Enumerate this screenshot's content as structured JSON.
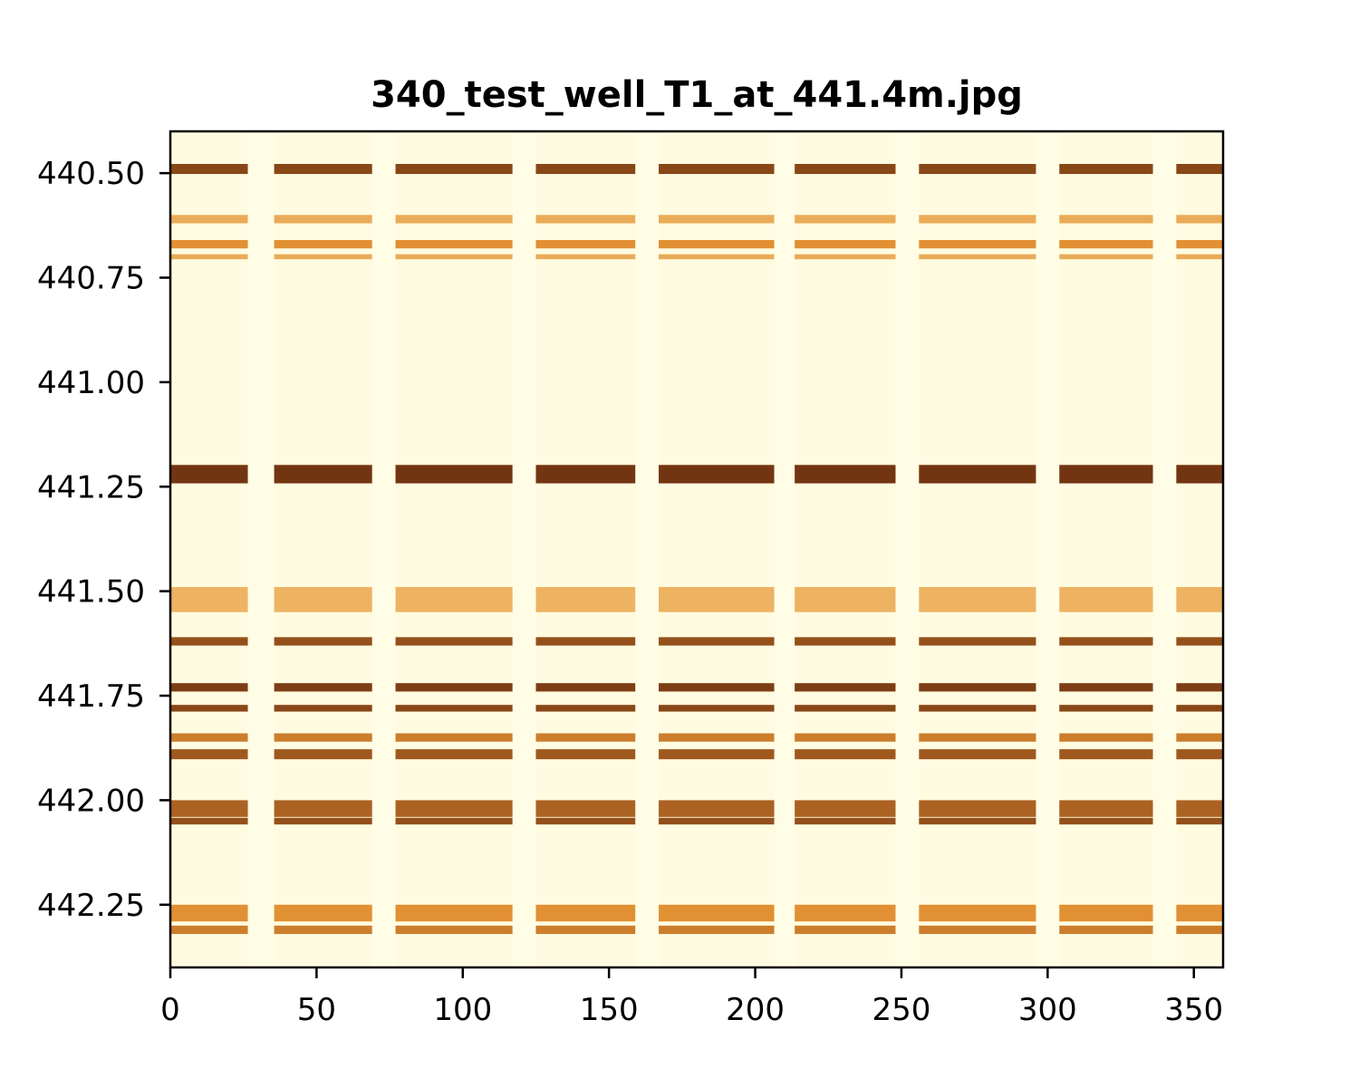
{
  "chart_data": {
    "type": "heatmap",
    "title": "340_test_well_T1_at_441.4m.jpg",
    "xlabel": "",
    "ylabel": "",
    "xlim": [
      0,
      360
    ],
    "ylim": [
      442.4,
      440.4
    ],
    "y_inverted": true,
    "grid": false,
    "colormap": "YlOrBr",
    "x_ticks": [
      {
        "value": 0,
        "label": "0"
      },
      {
        "value": 50,
        "label": "50"
      },
      {
        "value": 100,
        "label": "100"
      },
      {
        "value": 150,
        "label": "150"
      },
      {
        "value": 200,
        "label": "200"
      },
      {
        "value": 250,
        "label": "250"
      },
      {
        "value": 300,
        "label": "300"
      },
      {
        "value": 350,
        "label": "350"
      }
    ],
    "y_ticks": [
      {
        "value": 440.5,
        "label": "440.50"
      },
      {
        "value": 440.75,
        "label": "440.75"
      },
      {
        "value": 441.0,
        "label": "441.00"
      },
      {
        "value": 441.25,
        "label": "441.25"
      },
      {
        "value": 441.5,
        "label": "441.50"
      },
      {
        "value": 441.75,
        "label": "441.75"
      },
      {
        "value": 442.0,
        "label": "442.00"
      },
      {
        "value": 442.25,
        "label": "442.25"
      }
    ],
    "bands": [
      {
        "depth": 440.49,
        "width": 0.012,
        "intensity": 0.9
      },
      {
        "depth": 440.61,
        "width": 0.01,
        "intensity": 0.35
      },
      {
        "depth": 440.67,
        "width": 0.01,
        "intensity": 0.5
      },
      {
        "depth": 440.7,
        "width": 0.006,
        "intensity": 0.35
      },
      {
        "depth": 441.22,
        "width": 0.022,
        "intensity": 1.0
      },
      {
        "depth": 441.52,
        "width": 0.03,
        "intensity": 0.3
      },
      {
        "depth": 441.62,
        "width": 0.01,
        "intensity": 0.85
      },
      {
        "depth": 441.73,
        "width": 0.01,
        "intensity": 0.95
      },
      {
        "depth": 441.78,
        "width": 0.008,
        "intensity": 0.9
      },
      {
        "depth": 441.85,
        "width": 0.01,
        "intensity": 0.6
      },
      {
        "depth": 441.89,
        "width": 0.012,
        "intensity": 0.8
      },
      {
        "depth": 442.02,
        "width": 0.02,
        "intensity": 0.75
      },
      {
        "depth": 442.05,
        "width": 0.008,
        "intensity": 0.85
      },
      {
        "depth": 442.27,
        "width": 0.02,
        "intensity": 0.5
      },
      {
        "depth": 442.31,
        "width": 0.01,
        "intensity": 0.6
      }
    ],
    "gaps": [
      {
        "x": 31,
        "width": 9
      },
      {
        "x": 73,
        "width": 8
      },
      {
        "x": 121,
        "width": 8
      },
      {
        "x": 163,
        "width": 8
      },
      {
        "x": 210,
        "width": 7
      },
      {
        "x": 252,
        "width": 8
      },
      {
        "x": 300,
        "width": 8
      },
      {
        "x": 340,
        "width": 8
      }
    ],
    "colors": {
      "background": "#fffbe0",
      "dark": "#6b2a05",
      "mid": "#e08a2a",
      "light": "#fde7a8",
      "gap": "#fffde6"
    }
  }
}
